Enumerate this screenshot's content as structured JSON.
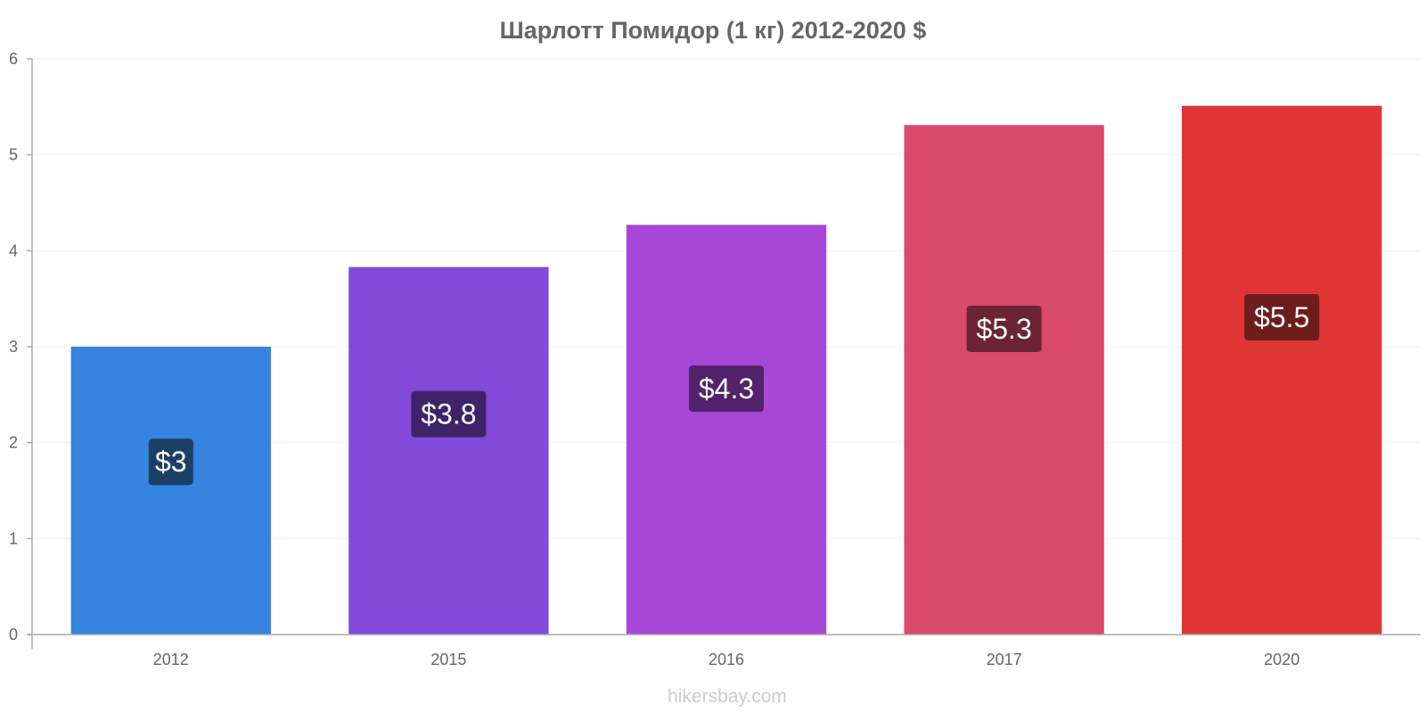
{
  "chart_data": {
    "type": "bar",
    "title": "Шарлотт Помидор (1 кг) 2012-2020 $",
    "categories": [
      "2012",
      "2015",
      "2016",
      "2017",
      "2020"
    ],
    "values": [
      3.0,
      3.83,
      4.27,
      5.31,
      5.51
    ],
    "data_labels": [
      "$3",
      "$3.8",
      "$4.3",
      "$5.3",
      "$5.5"
    ],
    "bar_colors": [
      "#3584e0",
      "#8349d9",
      "#a647d8",
      "#d9496a",
      "#e03535"
    ],
    "label_bg_colors": [
      "#1d3f66",
      "#3f2369",
      "#52226b",
      "#6b2434",
      "#6e1d1d"
    ],
    "ylim": [
      0,
      6
    ],
    "yticks": [
      "0",
      "1",
      "2",
      "3",
      "4",
      "5",
      "6"
    ],
    "grid": true,
    "xlabel": "",
    "ylabel": ""
  },
  "footer": "hikersbay.com"
}
